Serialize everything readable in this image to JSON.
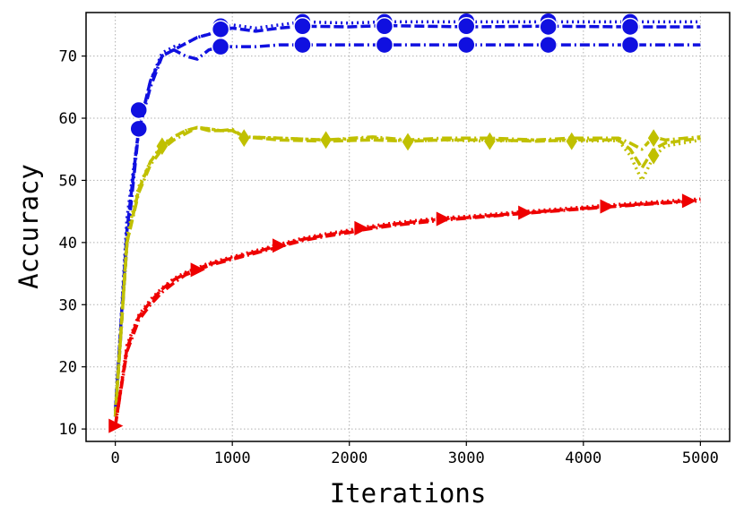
{
  "chart_data": {
    "type": "line",
    "title": "",
    "xlabel": "Iterations",
    "ylabel": "Accuracy",
    "xlim": [
      -250,
      5250
    ],
    "ylim": [
      8,
      77
    ],
    "xticks": [
      0,
      1000,
      2000,
      3000,
      4000,
      5000
    ],
    "yticks": [
      10,
      20,
      30,
      40,
      50,
      60,
      70
    ],
    "grid": true,
    "legend": "none",
    "series": [
      {
        "color": "#1010e0",
        "dash": "dotted",
        "marker": "circle",
        "x": [
          0,
          100,
          200,
          300,
          400,
          500,
          600,
          700,
          800,
          900,
          1000,
          1200,
          1400,
          1600,
          2000,
          2300,
          3000,
          3700,
          4400,
          5000
        ],
        "values": [
          12,
          44,
          58,
          66,
          70.5,
          71.5,
          72,
          73,
          73.5,
          74.5,
          75,
          74.5,
          75,
          75.5,
          75.3,
          75.5,
          75.5,
          75.5,
          75.5,
          75.5
        ],
        "markers": [
          [
            200,
            61.3
          ],
          [
            900,
            74.8
          ],
          [
            1600,
            75.5
          ],
          [
            2300,
            75.5
          ],
          [
            3000,
            75.6
          ],
          [
            3700,
            75.6
          ],
          [
            4400,
            75.5
          ]
        ]
      },
      {
        "color": "#1010e0",
        "dash": "dashed",
        "marker": "circle",
        "x": [
          0,
          100,
          200,
          300,
          400,
          500,
          600,
          700,
          800,
          900,
          1000,
          1200,
          1400,
          1600,
          2000,
          2300,
          3000,
          3700,
          4400,
          5000
        ],
        "values": [
          13,
          42,
          58.3,
          66,
          70,
          71,
          72,
          73,
          73.5,
          74,
          74.5,
          74,
          74.5,
          74.8,
          74.7,
          74.9,
          74.7,
          74.8,
          74.7,
          74.7
        ],
        "markers": [
          [
            200,
            58.3
          ],
          [
            900,
            74.3
          ],
          [
            1600,
            74.8
          ],
          [
            2300,
            74.8
          ],
          [
            3000,
            74.8
          ],
          [
            3700,
            74.7
          ],
          [
            4400,
            74.7
          ]
        ]
      },
      {
        "color": "#1010e0",
        "dash": "dashdot",
        "marker": "circle",
        "x": [
          0,
          100,
          200,
          300,
          400,
          500,
          600,
          700,
          800,
          900,
          1000,
          1200,
          1400,
          1600,
          2000,
          2300,
          3000,
          3700,
          4400,
          5000
        ],
        "values": [
          12,
          40,
          58,
          65,
          70,
          71,
          70,
          69.5,
          71,
          71.5,
          71.5,
          71.5,
          71.8,
          71.8,
          71.8,
          71.8,
          71.8,
          71.8,
          71.8,
          71.8
        ],
        "markers": [
          [
            900,
            71.5
          ],
          [
            1600,
            71.8
          ],
          [
            2300,
            71.8
          ],
          [
            3000,
            71.8
          ],
          [
            3700,
            71.8
          ],
          [
            4400,
            71.8
          ]
        ]
      },
      {
        "color": "#c0c000",
        "dash": "dotted",
        "marker": "diamond",
        "x": [
          0,
          100,
          200,
          300,
          400,
          500,
          600,
          700,
          800,
          900,
          1000,
          1100,
          1400,
          1800,
          2200,
          2500,
          2800,
          3200,
          3600,
          3900,
          4300,
          4400,
          4500,
          4600,
          4700,
          5000
        ],
        "values": [
          13,
          41,
          49,
          53,
          55.8,
          57,
          58,
          58.5,
          58.3,
          58,
          58,
          57,
          56.8,
          56.5,
          56.8,
          56.3,
          56.5,
          56.3,
          56.5,
          56.3,
          56.4,
          54,
          50,
          53.8,
          55.5,
          56.5
        ],
        "markers": [
          [
            400,
            55.5
          ],
          [
            1100,
            56.8
          ],
          [
            1800,
            56.5
          ],
          [
            2500,
            56.2
          ],
          [
            3200,
            56.2
          ],
          [
            3900,
            56.3
          ],
          [
            4600,
            54
          ]
        ]
      },
      {
        "color": "#c0c000",
        "dash": "dashed",
        "marker": "diamond",
        "x": [
          0,
          100,
          200,
          300,
          400,
          500,
          600,
          700,
          800,
          900,
          1000,
          1100,
          1400,
          1800,
          2200,
          2500,
          2800,
          3200,
          3600,
          3900,
          4300,
          4400,
          4500,
          4600,
          4700,
          5000
        ],
        "values": [
          12,
          40,
          48.5,
          53,
          55.5,
          57,
          58,
          58.5,
          58,
          58,
          58,
          57,
          56.5,
          56.3,
          56.5,
          56.3,
          56.5,
          56.5,
          56.3,
          56.5,
          56.5,
          55,
          52,
          55,
          56,
          56.8
        ],
        "markers": [
          [
            1100,
            56.8
          ],
          [
            1800,
            56.5
          ],
          [
            2500,
            56.2
          ],
          [
            3200,
            56.3
          ],
          [
            3900,
            56.3
          ]
        ]
      },
      {
        "color": "#c0c000",
        "dash": "dashdot",
        "marker": "diamond",
        "x": [
          0,
          100,
          200,
          300,
          400,
          500,
          600,
          700,
          800,
          900,
          1000,
          1100,
          1400,
          1800,
          2200,
          2500,
          2800,
          3200,
          3600,
          3900,
          4300,
          4400,
          4500,
          4600,
          4700,
          5000
        ],
        "values": [
          12,
          40,
          48,
          52.5,
          55,
          56.5,
          57.5,
          58.5,
          58.3,
          58,
          58.2,
          57,
          56.8,
          56.5,
          57,
          56.5,
          56.8,
          56.8,
          56.5,
          56.8,
          56.8,
          56,
          55,
          57,
          56.5,
          57
        ],
        "markers": [
          [
            4600,
            56.8
          ]
        ]
      },
      {
        "color": "#ee0000",
        "dash": "dashed",
        "marker": "triangle-right",
        "x": [
          0,
          100,
          200,
          300,
          400,
          500,
          600,
          700,
          800,
          1000,
          1200,
          1400,
          1600,
          1800,
          2000,
          2100,
          2400,
          2800,
          3000,
          3500,
          4000,
          4200,
          4500,
          4900,
          5000
        ],
        "values": [
          10.5,
          23,
          28,
          30.5,
          32.5,
          34,
          35,
          35.7,
          36.5,
          37.5,
          38.5,
          39.5,
          40.5,
          41.2,
          41.8,
          42.2,
          43,
          43.8,
          44,
          44.8,
          45.5,
          45.8,
          46.2,
          46.7,
          46.8
        ],
        "markers": [
          [
            0,
            10.5
          ],
          [
            700,
            35.6
          ],
          [
            1400,
            39.5
          ],
          [
            2100,
            42.3
          ],
          [
            2800,
            43.8
          ],
          [
            3500,
            44.8
          ],
          [
            4200,
            45.8
          ],
          [
            4900,
            46.7
          ]
        ]
      },
      {
        "color": "#ee0000",
        "dash": "dashdot",
        "marker": "triangle-right",
        "x": [
          0,
          100,
          200,
          300,
          400,
          500,
          600,
          700,
          800,
          1000,
          1200,
          1400,
          1600,
          1800,
          2000,
          2100,
          2400,
          2800,
          3000,
          3500,
          4000,
          4200,
          4500,
          4900,
          5000
        ],
        "values": [
          10.5,
          22.5,
          27.5,
          30,
          32,
          33.5,
          34.8,
          35.5,
          36.3,
          37.3,
          38.3,
          39.3,
          40.3,
          41,
          41.6,
          42,
          42.8,
          43.6,
          43.9,
          44.7,
          45.4,
          45.7,
          46.1,
          46.6,
          46.7
        ],
        "markers": []
      },
      {
        "color": "#ee0000",
        "dash": "dotted",
        "marker": "triangle-right",
        "x": [
          0,
          100,
          200,
          300,
          400,
          500,
          600,
          700,
          800,
          1000,
          1200,
          1400,
          1600,
          1800,
          2000,
          2100,
          2400,
          2800,
          3000,
          3500,
          4000,
          4200,
          4500,
          4900,
          5000
        ],
        "values": [
          10.5,
          23.5,
          28.3,
          30.8,
          32.7,
          34.2,
          35.2,
          35.9,
          36.7,
          37.7,
          38.7,
          39.7,
          40.7,
          41.4,
          42,
          42.4,
          43.2,
          44,
          44.2,
          45,
          45.7,
          46,
          46.4,
          46.9,
          47
        ],
        "markers": []
      }
    ]
  }
}
